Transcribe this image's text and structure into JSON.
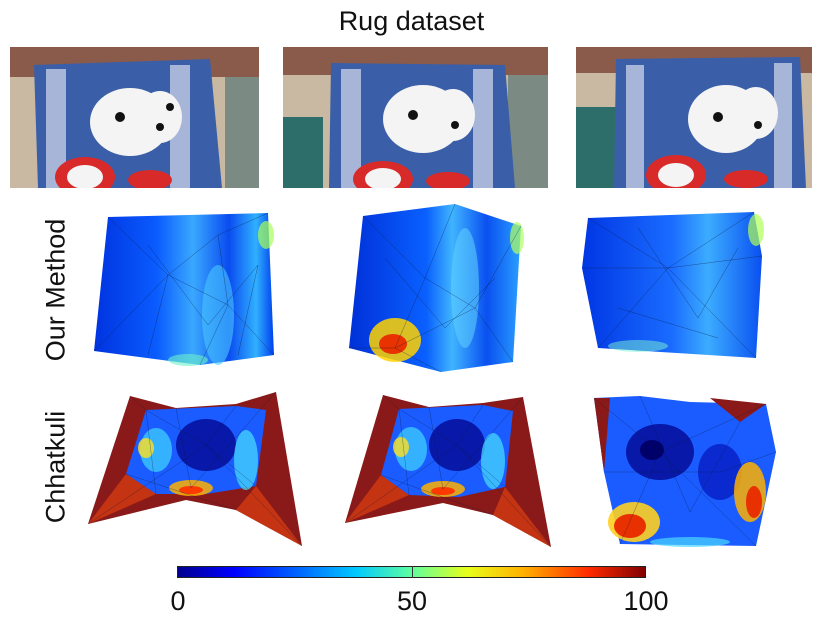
{
  "figure": {
    "title": "Rug dataset",
    "row_labels": [
      "Our Method",
      "Chhatkuli"
    ],
    "colorbar": {
      "min_label": "0",
      "mid_label": "50",
      "max_label": "100",
      "colormap": [
        "#00008f",
        "#0000ff",
        "#0060ff",
        "#00c8ff",
        "#5effa0",
        "#e8ff1a",
        "#ffb000",
        "#ff2a00",
        "#800000"
      ]
    },
    "columns": [
      {
        "photo": "rug-photo-1"
      },
      {
        "photo": "rug-photo-2"
      },
      {
        "photo": "rug-photo-3"
      }
    ]
  }
}
